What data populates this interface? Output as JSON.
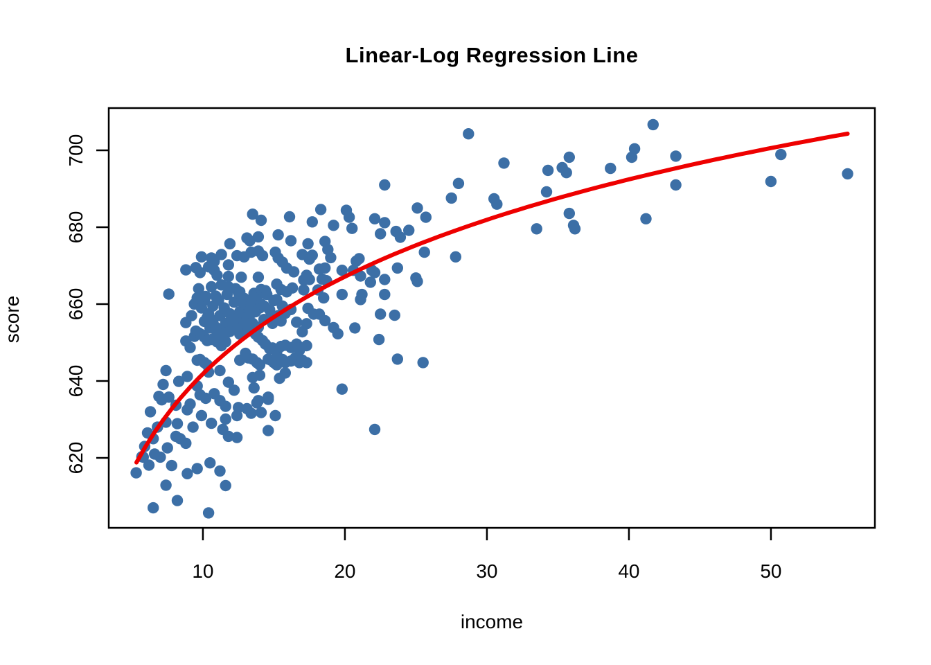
{
  "chart_data": {
    "type": "scatter",
    "title": "Linear-Log Regression Line",
    "xlabel": "income",
    "ylabel": "score",
    "xlim": [
      3.37,
      57.32
    ],
    "ylim": [
      601.8,
      711.0
    ],
    "x_ticks": [
      10,
      20,
      30,
      40,
      50
    ],
    "y_ticks": [
      620,
      640,
      660,
      680,
      700
    ],
    "grid": false,
    "legend": "none",
    "point_color": "#3C6FA6",
    "line_color": "#EE0000",
    "axis_color": "#000000",
    "regression_line": {
      "model": "linear-log",
      "equation": "score = 557.8 + 36.5 * ln(income)",
      "intercept": 557.8,
      "ln_slope": 36.5,
      "x_domain": [
        5.32,
        55.4
      ]
    },
    "points": [
      [
        5.3,
        616.1
      ],
      [
        5.7,
        620.3
      ],
      [
        5.8,
        620.2
      ],
      [
        5.9,
        623.0
      ],
      [
        6.1,
        626.5
      ],
      [
        6.2,
        618.1
      ],
      [
        6.3,
        632.0
      ],
      [
        6.5,
        607.0
      ],
      [
        6.5,
        625.0
      ],
      [
        6.6,
        621.0
      ],
      [
        6.8,
        628.0
      ],
      [
        6.9,
        636.0
      ],
      [
        7.0,
        620.2
      ],
      [
        7.1,
        635.1
      ],
      [
        7.2,
        639.1
      ],
      [
        7.4,
        642.7
      ],
      [
        7.4,
        629.3
      ],
      [
        7.4,
        612.9
      ],
      [
        7.5,
        622.6
      ],
      [
        7.6,
        662.6
      ],
      [
        7.6,
        635.8
      ],
      [
        7.8,
        618.0
      ],
      [
        8.1,
        633.7
      ],
      [
        8.1,
        625.6
      ],
      [
        8.2,
        628.9
      ],
      [
        8.2,
        608.9
      ],
      [
        8.3,
        639.9
      ],
      [
        8.4,
        625.0
      ],
      [
        8.8,
        668.9
      ],
      [
        8.8,
        655.2
      ],
      [
        8.8,
        650.4
      ],
      [
        8.8,
        623.8
      ],
      [
        8.9,
        641.2
      ],
      [
        8.9,
        632.5
      ],
      [
        8.9,
        615.9
      ],
      [
        9.1,
        648.7
      ],
      [
        9.1,
        634.0
      ],
      [
        9.2,
        657.0
      ],
      [
        9.3,
        628.0
      ],
      [
        9.4,
        660.0
      ],
      [
        9.4,
        651.6
      ],
      [
        9.5,
        669.5
      ],
      [
        9.5,
        653.0
      ],
      [
        9.6,
        661.6
      ],
      [
        9.6,
        645.4
      ],
      [
        9.6,
        638.7
      ],
      [
        9.6,
        617.2
      ],
      [
        9.7,
        664.0
      ],
      [
        9.7,
        652.5
      ],
      [
        9.8,
        668.2
      ],
      [
        9.8,
        645.6
      ],
      [
        9.8,
        636.4
      ],
      [
        9.9,
        672.3
      ],
      [
        9.9,
        659.0
      ],
      [
        9.9,
        652.1
      ],
      [
        9.9,
        631.0
      ],
      [
        10.1,
        660.9
      ],
      [
        10.1,
        655.5
      ],
      [
        10.1,
        651.4
      ],
      [
        10.1,
        644.8
      ],
      [
        10.2,
        662.0
      ],
      [
        10.2,
        635.5
      ],
      [
        10.3,
        656.5
      ],
      [
        10.3,
        650.5
      ],
      [
        10.3,
        644.2
      ],
      [
        10.4,
        669.7
      ],
      [
        10.4,
        657.5
      ],
      [
        10.4,
        642.3
      ],
      [
        10.4,
        605.7
      ],
      [
        10.5,
        653.8
      ],
      [
        10.5,
        618.7
      ],
      [
        10.6,
        672.0
      ],
      [
        10.6,
        664.5
      ],
      [
        10.6,
        650.8
      ],
      [
        10.6,
        629.0
      ],
      [
        10.7,
        659.5
      ],
      [
        10.7,
        655.7
      ],
      [
        10.8,
        671.1
      ],
      [
        10.8,
        668.8
      ],
      [
        10.8,
        651.0
      ],
      [
        10.8,
        636.7
      ],
      [
        10.9,
        662.1
      ],
      [
        10.9,
        654.0
      ],
      [
        11.0,
        667.5
      ],
      [
        11.0,
        652.2
      ],
      [
        11.0,
        650.2
      ],
      [
        11.1,
        661.0
      ],
      [
        11.2,
        657.0
      ],
      [
        11.2,
        653.2
      ],
      [
        11.2,
        642.7
      ],
      [
        11.2,
        634.9
      ],
      [
        11.2,
        616.6
      ],
      [
        11.3,
        672.9
      ],
      [
        11.3,
        665.0
      ],
      [
        11.3,
        649.2
      ],
      [
        11.4,
        652.2
      ],
      [
        11.4,
        627.4
      ],
      [
        11.5,
        659.0
      ],
      [
        11.6,
        655.0
      ],
      [
        11.6,
        650.2
      ],
      [
        11.6,
        633.4
      ],
      [
        11.6,
        630.1
      ],
      [
        11.6,
        612.8
      ],
      [
        11.7,
        662.5
      ],
      [
        11.7,
        652.6
      ],
      [
        11.8,
        670.2
      ],
      [
        11.8,
        667.2
      ],
      [
        11.8,
        664.5
      ],
      [
        11.8,
        639.7
      ],
      [
        11.8,
        625.6
      ],
      [
        11.9,
        675.7
      ],
      [
        11.9,
        657.5
      ],
      [
        11.9,
        652.9
      ],
      [
        12.1,
        653.5
      ],
      [
        12.2,
        660.5
      ],
      [
        12.2,
        655.6
      ],
      [
        12.2,
        637.6
      ],
      [
        12.3,
        664.0
      ],
      [
        12.3,
        656.0
      ],
      [
        12.4,
        672.6
      ],
      [
        12.4,
        656.1
      ],
      [
        12.4,
        631.0
      ],
      [
        12.4,
        625.3
      ],
      [
        12.5,
        663.0
      ],
      [
        12.5,
        633.1
      ],
      [
        12.6,
        663.2
      ],
      [
        12.6,
        658.0
      ],
      [
        12.6,
        652.2
      ],
      [
        12.6,
        645.4
      ],
      [
        12.7,
        667.0
      ],
      [
        12.7,
        660.7
      ],
      [
        12.7,
        654.5
      ],
      [
        12.9,
        672.3
      ],
      [
        12.9,
        661.5
      ],
      [
        12.9,
        655.1
      ],
      [
        13.0,
        660.0
      ],
      [
        13.0,
        647.2
      ],
      [
        13.1,
        677.2
      ],
      [
        13.1,
        657.4
      ],
      [
        13.1,
        656.5
      ],
      [
        13.1,
        632.8
      ],
      [
        13.2,
        653.0
      ],
      [
        13.2,
        646.0
      ],
      [
        13.3,
        676.5
      ],
      [
        13.3,
        659.5
      ],
      [
        13.4,
        673.5
      ],
      [
        13.4,
        659.8
      ],
      [
        13.4,
        657.6
      ],
      [
        13.4,
        631.6
      ],
      [
        13.5,
        683.4
      ],
      [
        13.5,
        655.0
      ],
      [
        13.5,
        645.7
      ],
      [
        13.5,
        640.9
      ],
      [
        13.6,
        662.8
      ],
      [
        13.6,
        662.0
      ],
      [
        13.6,
        638.2
      ],
      [
        13.7,
        658.0
      ],
      [
        13.7,
        652.2
      ],
      [
        13.8,
        661.7
      ],
      [
        13.8,
        644.8
      ],
      [
        13.8,
        634.3
      ],
      [
        13.9,
        677.5
      ],
      [
        13.9,
        673.8
      ],
      [
        13.9,
        667.0
      ],
      [
        13.9,
        654.0
      ],
      [
        13.9,
        651.4
      ],
      [
        13.9,
        634.9
      ],
      [
        14.0,
        659.0
      ],
      [
        14.0,
        644.2
      ],
      [
        14.0,
        641.5
      ],
      [
        14.1,
        681.8
      ],
      [
        14.1,
        663.8
      ],
      [
        14.1,
        660.0
      ],
      [
        14.1,
        631.8
      ],
      [
        14.2,
        672.6
      ],
      [
        14.2,
        650.5
      ],
      [
        14.3,
        659.5
      ],
      [
        14.3,
        656.0
      ],
      [
        14.4,
        663.5
      ],
      [
        14.4,
        649.6
      ],
      [
        14.5,
        662.5
      ],
      [
        14.6,
        645.7
      ],
      [
        14.6,
        635.8
      ],
      [
        14.6,
        635.2
      ],
      [
        14.6,
        627.1
      ],
      [
        14.7,
        658.5
      ],
      [
        14.7,
        648.4
      ],
      [
        14.8,
        656.8
      ],
      [
        14.8,
        645.4
      ],
      [
        14.9,
        655.0
      ],
      [
        14.9,
        648.6
      ],
      [
        15.0,
        660.9
      ],
      [
        15.0,
        644.8
      ],
      [
        15.1,
        673.5
      ],
      [
        15.1,
        661.0
      ],
      [
        15.1,
        631.0
      ],
      [
        15.2,
        665.2
      ],
      [
        15.2,
        661.2
      ],
      [
        15.2,
        647.5
      ],
      [
        15.2,
        644.2
      ],
      [
        15.3,
        678.0
      ],
      [
        15.3,
        672.0
      ],
      [
        15.3,
        657.0
      ],
      [
        15.3,
        646.0
      ],
      [
        15.4,
        640.7
      ],
      [
        15.5,
        663.8
      ],
      [
        15.5,
        655.6
      ],
      [
        15.5,
        649.0
      ],
      [
        15.6,
        670.9
      ],
      [
        15.6,
        659.5
      ],
      [
        15.6,
        645.6
      ],
      [
        15.8,
        657.6
      ],
      [
        15.8,
        649.3
      ],
      [
        15.8,
        644.8
      ],
      [
        15.8,
        642.1
      ],
      [
        15.9,
        669.4
      ],
      [
        15.9,
        663.2
      ],
      [
        16.1,
        682.7
      ],
      [
        16.2,
        676.5
      ],
      [
        16.2,
        658.6
      ],
      [
        16.2,
        648.7
      ],
      [
        16.2,
        645.2
      ],
      [
        16.3,
        664.2
      ],
      [
        16.4,
        668.4
      ],
      [
        16.5,
        646.0
      ],
      [
        16.6,
        655.3
      ],
      [
        16.6,
        649.6
      ],
      [
        16.7,
        648.6
      ],
      [
        16.8,
        648.0
      ],
      [
        16.8,
        644.8
      ],
      [
        17.0,
        672.9
      ],
      [
        17.0,
        652.8
      ],
      [
        17.0,
        645.4
      ],
      [
        17.1,
        666.3
      ],
      [
        17.1,
        663.7
      ],
      [
        17.3,
        667.5
      ],
      [
        17.3,
        654.9
      ],
      [
        17.3,
        649.2
      ],
      [
        17.3,
        644.8
      ],
      [
        17.4,
        675.7
      ],
      [
        17.4,
        658.9
      ],
      [
        17.5,
        671.7
      ],
      [
        17.5,
        666.4
      ],
      [
        17.7,
        681.4
      ],
      [
        17.7,
        672.7
      ],
      [
        17.8,
        657.4
      ],
      [
        18.1,
        663.7
      ],
      [
        18.2,
        669.1
      ],
      [
        18.2,
        657.4
      ],
      [
        18.3,
        684.6
      ],
      [
        18.4,
        666.5
      ],
      [
        18.5,
        661.6
      ],
      [
        18.6,
        676.3
      ],
      [
        18.6,
        669.4
      ],
      [
        18.6,
        655.7
      ],
      [
        18.7,
        666.1
      ],
      [
        18.8,
        674.2
      ],
      [
        19.0,
        672.1
      ],
      [
        19.2,
        680.5
      ],
      [
        19.2,
        653.9
      ],
      [
        19.5,
        652.3
      ],
      [
        19.8,
        668.8
      ],
      [
        19.8,
        662.5
      ],
      [
        19.8,
        637.9
      ],
      [
        20.1,
        684.4
      ],
      [
        20.3,
        682.6
      ],
      [
        20.5,
        679.7
      ],
      [
        20.6,
        668.8
      ],
      [
        20.7,
        653.8
      ],
      [
        20.8,
        671.2
      ],
      [
        21.0,
        671.8
      ],
      [
        21.1,
        667.3
      ],
      [
        21.1,
        661.2
      ],
      [
        21.2,
        662.5
      ],
      [
        21.8,
        665.7
      ],
      [
        21.9,
        668.8
      ],
      [
        22.1,
        682.2
      ],
      [
        22.1,
        668.2
      ],
      [
        22.1,
        627.4
      ],
      [
        22.4,
        650.8
      ],
      [
        22.5,
        678.3
      ],
      [
        22.5,
        657.4
      ],
      [
        22.8,
        691.0
      ],
      [
        22.8,
        681.2
      ],
      [
        22.8,
        666.4
      ],
      [
        22.8,
        662.5
      ],
      [
        23.5,
        657.1
      ],
      [
        23.6,
        678.9
      ],
      [
        23.7,
        669.4
      ],
      [
        23.7,
        645.7
      ],
      [
        23.9,
        677.4
      ],
      [
        24.5,
        679.2
      ],
      [
        25.0,
        666.8
      ],
      [
        25.1,
        685.0
      ],
      [
        25.1,
        665.9
      ],
      [
        25.5,
        644.8
      ],
      [
        25.6,
        673.5
      ],
      [
        25.7,
        682.6
      ],
      [
        27.5,
        687.6
      ],
      [
        27.8,
        672.3
      ],
      [
        28.0,
        691.4
      ],
      [
        28.7,
        704.3
      ],
      [
        30.5,
        687.4
      ],
      [
        30.7,
        686.0
      ],
      [
        31.2,
        696.7
      ],
      [
        33.5,
        679.6
      ],
      [
        34.2,
        689.2
      ],
      [
        34.3,
        694.8
      ],
      [
        35.3,
        695.5
      ],
      [
        35.6,
        694.2
      ],
      [
        35.8,
        698.2
      ],
      [
        35.8,
        683.6
      ],
      [
        36.1,
        680.5
      ],
      [
        36.2,
        679.6
      ],
      [
        38.7,
        695.3
      ],
      [
        40.2,
        698.2
      ],
      [
        40.4,
        700.4
      ],
      [
        41.2,
        682.2
      ],
      [
        41.7,
        706.7
      ],
      [
        43.3,
        698.5
      ],
      [
        43.3,
        691.0
      ],
      [
        50.0,
        691.9
      ],
      [
        50.7,
        698.9
      ],
      [
        55.4,
        693.9
      ]
    ]
  }
}
